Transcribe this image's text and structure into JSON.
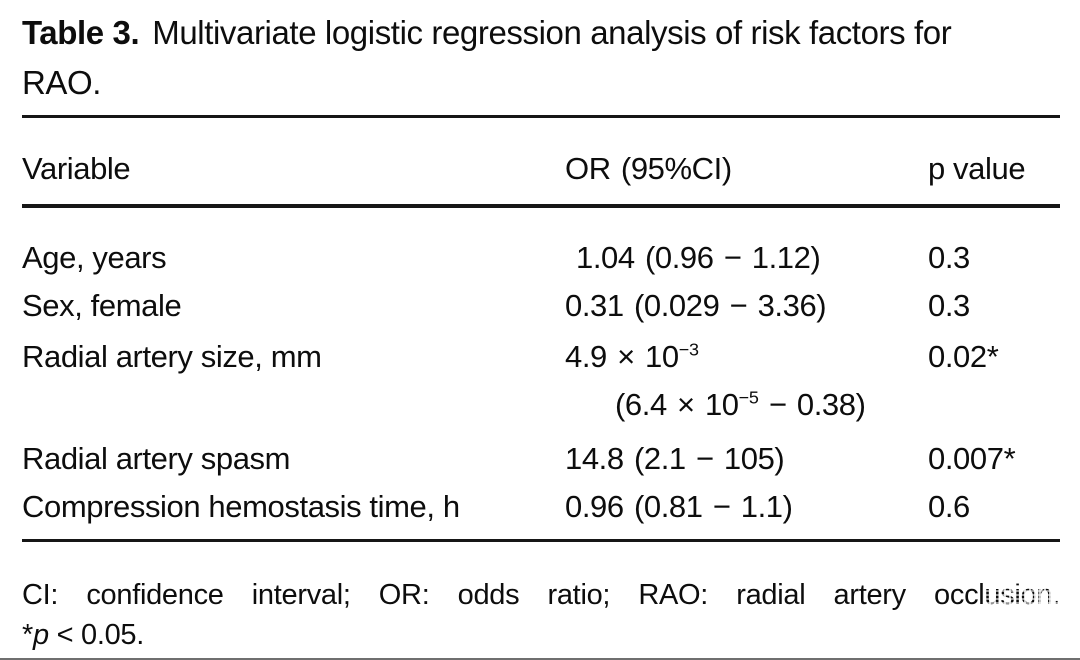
{
  "title": {
    "label": "Table 3.",
    "line1": "Multivariate logistic regression analysis of risk factors for",
    "line2": "RAO."
  },
  "table": {
    "header": {
      "variable": "Variable",
      "or": "OR (95%CI)",
      "p": "p value"
    },
    "rows": [
      {
        "variable": "Age, years",
        "or": "1.04 (0.96 − 1.12)",
        "p": "0.3"
      },
      {
        "variable": "Sex, female",
        "or": "0.31 (0.029 − 3.36)",
        "p": "0.3"
      },
      {
        "variable": "Radial artery size, mm",
        "or": "4.9 × 10^{−3}",
        "or_line2": "(6.4 × 10^{−5} − 0.38)",
        "p": "0.02*"
      },
      {
        "variable": "Radial artery spasm",
        "or": "14.8 (2.1 − 105)",
        "p": "0.007*"
      },
      {
        "variable": "Compression hemostasis time, h",
        "or": "0.96 (0.81 − 1.1)",
        "p": "0.6"
      }
    ]
  },
  "footnotes": {
    "abbreviations": "CI: confidence interval; OR: odds ratio; RAO: radial artery occlusion.",
    "significance": {
      "symbol": "*",
      "p_italic": "p",
      "rest": " < 0.05."
    }
  },
  "colors": {
    "text": "#0d0d0d",
    "rule": "#161616",
    "background": "#ffffff"
  }
}
